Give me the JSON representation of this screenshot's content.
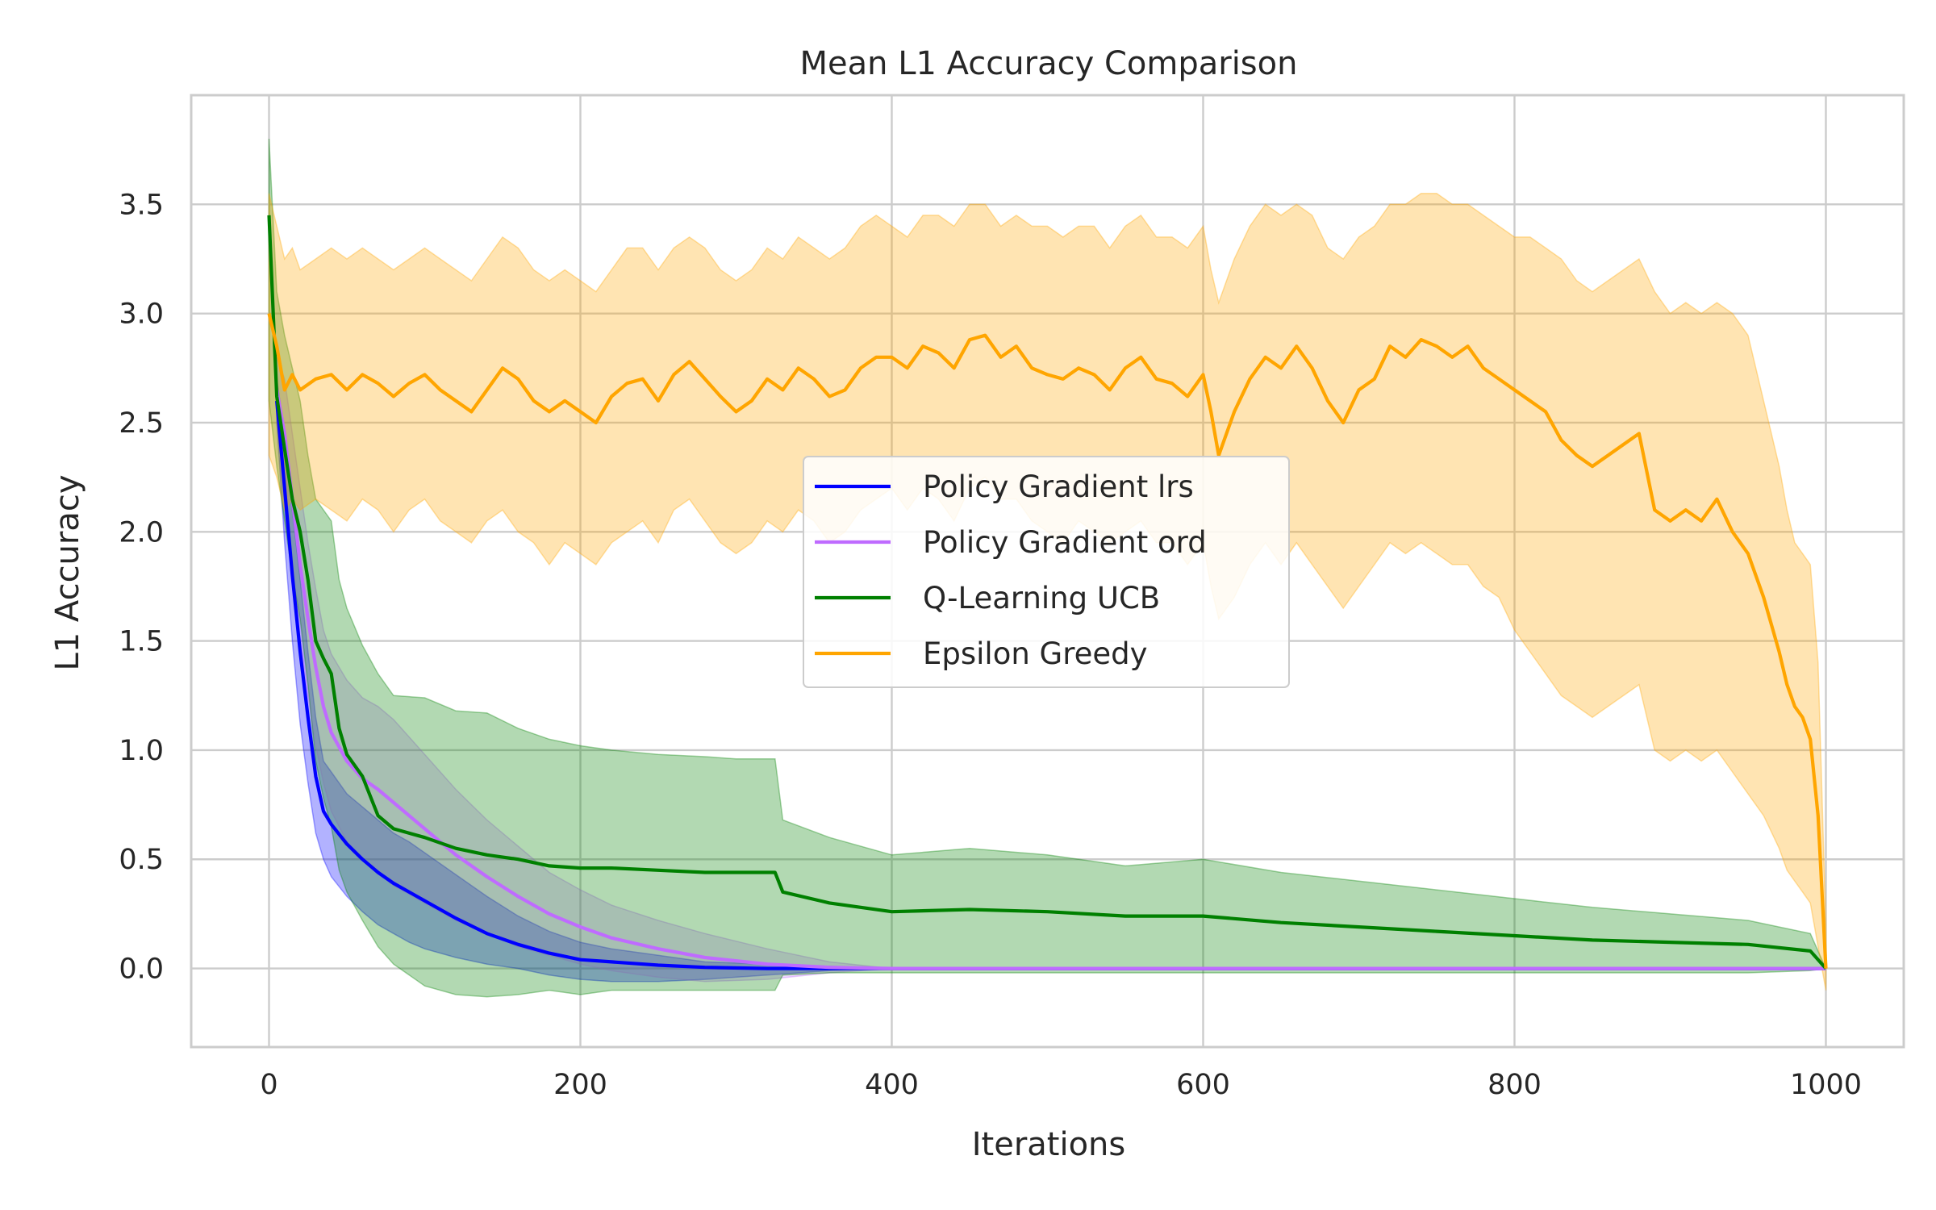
{
  "chart_data": {
    "type": "line",
    "title": "Mean L1 Accuracy Comparison",
    "xlabel": "Iterations",
    "ylabel": "L1 Accuracy",
    "xlim": [
      -50,
      1050
    ],
    "ylim": [
      -0.36,
      4.0
    ],
    "x_ticks": [
      0,
      200,
      400,
      600,
      800,
      1000
    ],
    "y_ticks": [
      0.0,
      0.5,
      1.0,
      1.5,
      2.0,
      2.5,
      3.0,
      3.5
    ],
    "x_tick_labels": [
      "0",
      "200",
      "400",
      "600",
      "800",
      "1000"
    ],
    "y_tick_labels": [
      "0.0",
      "0.5",
      "1.0",
      "1.5",
      "2.0",
      "2.5",
      "3.0",
      "3.5"
    ],
    "grid": true,
    "legend_position": "center",
    "series": [
      {
        "name": "Policy Gradient lrs",
        "color": "#0000ff",
        "x": [
          5,
          10,
          15,
          20,
          25,
          30,
          35,
          40,
          50,
          60,
          70,
          80,
          90,
          100,
          120,
          140,
          160,
          180,
          200,
          220,
          250,
          280,
          320,
          360,
          400,
          500,
          600,
          700,
          800,
          900,
          1000
        ],
        "y": [
          2.6,
          2.2,
          1.8,
          1.45,
          1.15,
          0.88,
          0.72,
          0.66,
          0.57,
          0.5,
          0.44,
          0.39,
          0.35,
          0.31,
          0.23,
          0.16,
          0.11,
          0.07,
          0.04,
          0.03,
          0.015,
          0.005,
          0.0,
          0.0,
          0.0,
          0.0,
          0.0,
          0.0,
          0.0,
          0.0,
          0.0
        ],
        "lower": [
          2.5,
          1.95,
          1.5,
          1.12,
          0.85,
          0.62,
          0.5,
          0.42,
          0.33,
          0.26,
          0.2,
          0.16,
          0.12,
          0.09,
          0.05,
          0.02,
          0.0,
          -0.03,
          -0.05,
          -0.06,
          -0.06,
          -0.05,
          -0.03,
          -0.01,
          0.0,
          0.0,
          0.0,
          0.0,
          0.0,
          0.0,
          0.0
        ],
        "upper": [
          2.7,
          2.45,
          2.1,
          1.78,
          1.45,
          1.15,
          0.95,
          0.9,
          0.8,
          0.74,
          0.68,
          0.62,
          0.58,
          0.53,
          0.43,
          0.33,
          0.24,
          0.17,
          0.12,
          0.09,
          0.06,
          0.03,
          0.02,
          0.01,
          0.0,
          0.0,
          0.0,
          0.0,
          0.0,
          0.0,
          0.0
        ]
      },
      {
        "name": "Policy Gradient ord",
        "color": "#bf6bff",
        "x": [
          5,
          10,
          15,
          20,
          25,
          30,
          35,
          40,
          50,
          60,
          70,
          80,
          100,
          120,
          140,
          160,
          180,
          200,
          220,
          250,
          280,
          320,
          360,
          400,
          500,
          600,
          700,
          800,
          900,
          1000
        ],
        "y": [
          2.65,
          2.45,
          2.15,
          1.85,
          1.6,
          1.38,
          1.2,
          1.08,
          0.95,
          0.87,
          0.82,
          0.76,
          0.64,
          0.52,
          0.42,
          0.33,
          0.25,
          0.19,
          0.14,
          0.09,
          0.05,
          0.02,
          0.005,
          0.0,
          0.0,
          0.0,
          0.0,
          0.0,
          0.0,
          0.0
        ],
        "lower": [
          2.5,
          2.2,
          1.85,
          1.5,
          1.25,
          1.02,
          0.85,
          0.72,
          0.58,
          0.5,
          0.44,
          0.38,
          0.3,
          0.22,
          0.16,
          0.1,
          0.06,
          0.02,
          -0.01,
          -0.04,
          -0.06,
          -0.05,
          -0.02,
          0.0,
          0.0,
          0.0,
          0.0,
          0.0,
          0.0,
          0.0
        ],
        "upper": [
          2.8,
          2.7,
          2.45,
          2.2,
          1.95,
          1.74,
          1.55,
          1.44,
          1.32,
          1.24,
          1.2,
          1.14,
          0.98,
          0.82,
          0.68,
          0.56,
          0.44,
          0.36,
          0.29,
          0.22,
          0.16,
          0.09,
          0.03,
          0.0,
          0.0,
          0.0,
          0.0,
          0.0,
          0.0,
          0.0
        ]
      },
      {
        "name": "Q-Learning UCB",
        "color": "#008000",
        "x": [
          0,
          5,
          10,
          15,
          20,
          25,
          30,
          35,
          40,
          45,
          50,
          60,
          70,
          80,
          100,
          120,
          140,
          160,
          180,
          200,
          220,
          250,
          280,
          300,
          325,
          330,
          360,
          400,
          450,
          500,
          550,
          600,
          650,
          700,
          750,
          800,
          850,
          900,
          950,
          990,
          1000
        ],
        "y": [
          3.45,
          2.62,
          2.38,
          2.15,
          2.0,
          1.78,
          1.5,
          1.42,
          1.35,
          1.1,
          0.98,
          0.88,
          0.7,
          0.64,
          0.6,
          0.55,
          0.52,
          0.5,
          0.47,
          0.46,
          0.46,
          0.45,
          0.44,
          0.44,
          0.44,
          0.35,
          0.3,
          0.26,
          0.27,
          0.26,
          0.24,
          0.24,
          0.21,
          0.19,
          0.17,
          0.15,
          0.13,
          0.12,
          0.11,
          0.08,
          0.0
        ],
        "lower": [
          2.6,
          2.3,
          2.05,
          1.8,
          1.6,
          1.3,
          0.95,
          0.78,
          0.65,
          0.45,
          0.35,
          0.22,
          0.1,
          0.02,
          -0.08,
          -0.12,
          -0.13,
          -0.12,
          -0.1,
          -0.12,
          -0.1,
          -0.1,
          -0.1,
          -0.1,
          -0.1,
          -0.03,
          -0.02,
          -0.02,
          -0.02,
          -0.02,
          -0.02,
          -0.02,
          -0.02,
          -0.02,
          -0.02,
          -0.02,
          -0.02,
          -0.02,
          -0.02,
          -0.01,
          0.0
        ],
        "upper": [
          3.8,
          3.1,
          2.9,
          2.75,
          2.6,
          2.35,
          2.15,
          2.1,
          2.05,
          1.78,
          1.65,
          1.48,
          1.35,
          1.25,
          1.24,
          1.18,
          1.17,
          1.1,
          1.05,
          1.02,
          1.0,
          0.98,
          0.97,
          0.96,
          0.96,
          0.68,
          0.6,
          0.52,
          0.55,
          0.52,
          0.47,
          0.5,
          0.44,
          0.4,
          0.36,
          0.32,
          0.28,
          0.25,
          0.22,
          0.16,
          0.0
        ]
      },
      {
        "name": "Epsilon Greedy",
        "color": "#ffa500",
        "x": [
          0,
          5,
          10,
          15,
          20,
          30,
          40,
          50,
          60,
          70,
          80,
          90,
          100,
          110,
          120,
          130,
          140,
          150,
          160,
          170,
          180,
          190,
          200,
          210,
          220,
          230,
          240,
          250,
          260,
          270,
          280,
          290,
          300,
          310,
          320,
          330,
          340,
          350,
          360,
          370,
          380,
          390,
          400,
          410,
          420,
          430,
          440,
          450,
          460,
          470,
          480,
          490,
          500,
          510,
          520,
          530,
          540,
          550,
          560,
          570,
          580,
          590,
          600,
          605,
          610,
          620,
          630,
          640,
          650,
          660,
          670,
          680,
          690,
          700,
          710,
          720,
          730,
          740,
          750,
          760,
          770,
          780,
          790,
          800,
          810,
          820,
          830,
          840,
          850,
          860,
          870,
          880,
          890,
          900,
          910,
          920,
          930,
          940,
          950,
          960,
          970,
          975,
          980,
          985,
          990,
          995,
          1000
        ],
        "y": [
          3.0,
          2.85,
          2.65,
          2.72,
          2.65,
          2.7,
          2.72,
          2.65,
          2.72,
          2.68,
          2.62,
          2.68,
          2.72,
          2.65,
          2.6,
          2.55,
          2.65,
          2.75,
          2.7,
          2.6,
          2.55,
          2.6,
          2.55,
          2.5,
          2.62,
          2.68,
          2.7,
          2.6,
          2.72,
          2.78,
          2.7,
          2.62,
          2.55,
          2.6,
          2.7,
          2.65,
          2.75,
          2.7,
          2.62,
          2.65,
          2.75,
          2.8,
          2.8,
          2.75,
          2.85,
          2.82,
          2.75,
          2.88,
          2.9,
          2.8,
          2.85,
          2.75,
          2.72,
          2.7,
          2.75,
          2.72,
          2.65,
          2.75,
          2.8,
          2.7,
          2.68,
          2.62,
          2.72,
          2.55,
          2.35,
          2.55,
          2.7,
          2.8,
          2.75,
          2.85,
          2.75,
          2.6,
          2.5,
          2.65,
          2.7,
          2.85,
          2.8,
          2.88,
          2.85,
          2.8,
          2.85,
          2.75,
          2.7,
          2.65,
          2.6,
          2.55,
          2.42,
          2.35,
          2.3,
          2.35,
          2.4,
          2.45,
          2.1,
          2.05,
          2.1,
          2.05,
          2.15,
          2.0,
          1.9,
          1.7,
          1.45,
          1.3,
          1.2,
          1.15,
          1.05,
          0.7,
          0.0
        ],
        "lower": [
          2.35,
          2.25,
          2.1,
          2.15,
          2.1,
          2.15,
          2.1,
          2.05,
          2.15,
          2.1,
          2.0,
          2.1,
          2.15,
          2.05,
          2.0,
          1.95,
          2.05,
          2.1,
          2.0,
          1.95,
          1.85,
          1.95,
          1.9,
          1.85,
          1.95,
          2.0,
          2.05,
          1.95,
          2.1,
          2.15,
          2.05,
          1.95,
          1.9,
          1.95,
          2.05,
          2.0,
          2.1,
          2.05,
          1.95,
          2.0,
          2.1,
          2.15,
          2.2,
          2.1,
          2.2,
          2.15,
          2.05,
          2.2,
          2.25,
          2.15,
          2.15,
          2.05,
          2.0,
          1.95,
          2.05,
          2.0,
          1.95,
          2.0,
          2.05,
          1.95,
          1.95,
          1.85,
          1.95,
          1.75,
          1.6,
          1.7,
          1.85,
          1.95,
          1.85,
          1.95,
          1.85,
          1.75,
          1.65,
          1.75,
          1.85,
          1.95,
          1.9,
          1.95,
          1.9,
          1.85,
          1.85,
          1.75,
          1.7,
          1.55,
          1.45,
          1.35,
          1.25,
          1.2,
          1.15,
          1.2,
          1.25,
          1.3,
          1.0,
          0.95,
          1.0,
          0.95,
          1.0,
          0.9,
          0.8,
          0.7,
          0.55,
          0.45,
          0.4,
          0.35,
          0.3,
          0.1,
          -0.1
        ],
        "upper": [
          3.55,
          3.4,
          3.25,
          3.3,
          3.2,
          3.25,
          3.3,
          3.25,
          3.3,
          3.25,
          3.2,
          3.25,
          3.3,
          3.25,
          3.2,
          3.15,
          3.25,
          3.35,
          3.3,
          3.2,
          3.15,
          3.2,
          3.15,
          3.1,
          3.2,
          3.3,
          3.3,
          3.2,
          3.3,
          3.35,
          3.3,
          3.2,
          3.15,
          3.2,
          3.3,
          3.25,
          3.35,
          3.3,
          3.25,
          3.3,
          3.4,
          3.45,
          3.4,
          3.35,
          3.45,
          3.45,
          3.4,
          3.5,
          3.5,
          3.4,
          3.45,
          3.4,
          3.4,
          3.35,
          3.4,
          3.4,
          3.3,
          3.4,
          3.45,
          3.35,
          3.35,
          3.3,
          3.4,
          3.2,
          3.05,
          3.25,
          3.4,
          3.5,
          3.45,
          3.5,
          3.45,
          3.3,
          3.25,
          3.35,
          3.4,
          3.5,
          3.5,
          3.55,
          3.55,
          3.5,
          3.5,
          3.45,
          3.4,
          3.35,
          3.35,
          3.3,
          3.25,
          3.15,
          3.1,
          3.15,
          3.2,
          3.25,
          3.1,
          3.0,
          3.05,
          3.0,
          3.05,
          3.0,
          2.9,
          2.6,
          2.3,
          2.1,
          1.95,
          1.9,
          1.85,
          1.4,
          0.2
        ]
      }
    ]
  }
}
